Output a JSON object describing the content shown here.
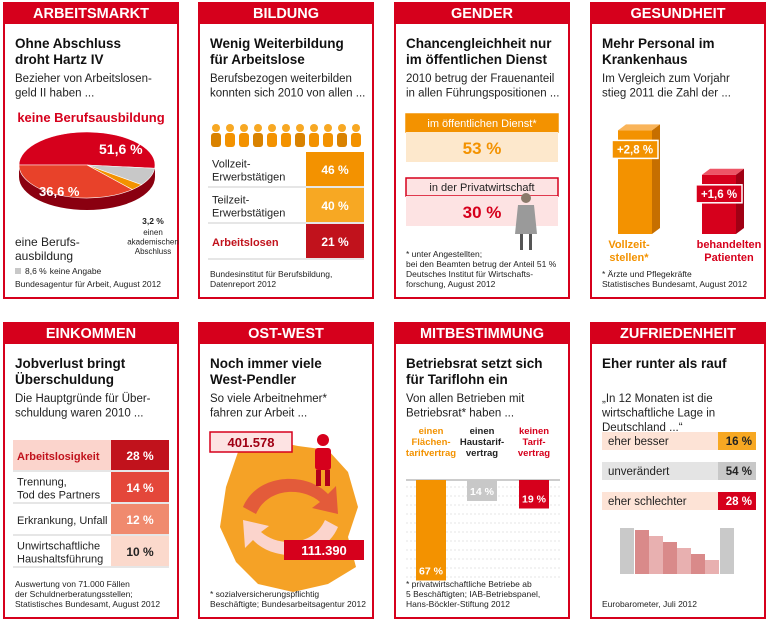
{
  "panels": [
    {
      "header": "ARBEITSMARKT",
      "title": "Ohne Abschluss\ndroht Hartz IV",
      "intro": "Bezieher von Arbeitslosen-\ngeld II haben ...",
      "pie": {
        "labels": [
          "keine Berufsausbildung",
          "eine Berufs-\nausbildung",
          "einen\nakademischen\nAbschluss",
          "keine Angabe"
        ],
        "values": [
          51.6,
          36.6,
          3.2,
          8.6
        ],
        "value_labels": [
          "51,6 %",
          "36,6 %",
          "3,2 %",
          "8,6 %"
        ],
        "colors": [
          "#d6001c",
          "#e8422a",
          "#f39200",
          "#c8c8c8"
        ]
      },
      "source": "Bundesagentur für Arbeit, August 2012"
    },
    {
      "header": "BILDUNG",
      "title": "Wenig Weiterbildung\nfür Arbeitslose",
      "intro": "Berufsbezogen weiterbilden\nkonnten sich 2010 von allen ...",
      "table": {
        "labels": [
          "Vollzeit-\nErwerbstätigen",
          "Teilzeit-\nErwerbstätigen",
          "Arbeitslosen"
        ],
        "values": [
          46,
          40,
          21
        ],
        "value_labels": [
          "46 %",
          "40 %",
          "21 %"
        ],
        "colors": [
          "#f39200",
          "#f7a823",
          "#c1121c"
        ],
        "label_colors": [
          "#222222",
          "#222222",
          "#c1121c"
        ]
      },
      "source": "Bundesinstitut für Berufsbildung,\nDatenreport 2012"
    },
    {
      "header": "GENDER",
      "title": "Chancengleichheit nur\nim öffentlichen Dienst",
      "intro": "2010 betrug der Frauenanteil\nin allen Führungspositionen ...",
      "boxes": {
        "labels": [
          "im öffentlichen Dienst*",
          "in der Privatwirtschaft"
        ],
        "values": [
          53,
          30
        ],
        "value_labels": [
          "53 %",
          "30 %"
        ],
        "colors": [
          "#f39200",
          "#d6001c"
        ]
      },
      "source": "* unter Angestellten;\nbei den Beamten betrug der Anteil 51 %\nDeutsches Institut für Wirtschafts-\nforschung, August 2012"
    },
    {
      "header": "GESUNDHEIT",
      "title": "Mehr Personal im\nKrankenhaus",
      "intro": "Im Vergleich zum Vorjahr\nstieg 2011 die Zahl der ...",
      "bars": {
        "labels": [
          "Vollzeit-\nstellen*",
          "behandelten\nPatienten"
        ],
        "values": [
          2.8,
          1.6
        ],
        "value_labels": [
          "+2,8 %",
          "+1,6 %"
        ],
        "colors": [
          "#f39200",
          "#d6001c"
        ]
      },
      "source": "* Ärzte und Pflegekräfte\nStatistisches Bundesamt, August 2012"
    },
    {
      "header": "EINKOMMEN",
      "title": "Jobverlust bringt\nÜberschuldung",
      "intro": "Die Hauptgründe für Über-\nschuldung waren 2010 ...",
      "table": {
        "labels": [
          "Arbeitslosigkeit",
          "Trennung,\nTod des Partners",
          "Erkrankung, Unfall",
          "Unwirtschaftliche\nHaushaltsführung"
        ],
        "values": [
          28,
          14,
          12,
          10
        ],
        "value_labels": [
          "28 %",
          "14 %",
          "12 %",
          "10 %"
        ],
        "colors": [
          "#c1121c",
          "#e4473a",
          "#f08a6e",
          "#fbd9cc"
        ],
        "label_colors": [
          "#c1121c",
          "#222222",
          "#222222",
          "#222222"
        ]
      },
      "source": "Auswertung von 71.000 Fällen\nder Schuldnerberatungsstellen;\nStatistisches Bundesamt, August 2012"
    },
    {
      "header": "OST-WEST",
      "title": "Noch immer viele\nWest-Pendler",
      "intro": "So viele Arbeitnehmer*\nfahren zur Arbeit ...",
      "flows": {
        "values": [
          401578,
          111390
        ],
        "value_labels": [
          "401.578",
          "111.390"
        ]
      },
      "source": "* sozialversicherungspflichtig\nBeschäftigte; Bundesarbeitsagentur 2012"
    },
    {
      "header": "MITBESTIMMUNG",
      "title": "Betriebsrat setzt sich\nfür Tariflohn ein",
      "intro": "Von allen Betrieben mit\nBetriebsrat* haben ...",
      "columns": {
        "labels": [
          "einen\nFlächen-\ntarifvertrag",
          "einen\nHaustarif-\nvertrag",
          "keinen\nTarif-\nvertrag"
        ],
        "values": [
          67,
          14,
          19
        ],
        "value_labels": [
          "67 %",
          "14 %",
          "19 %"
        ],
        "colors": [
          "#f39200",
          "#c8c8c8",
          "#d6001c"
        ],
        "label_colors": [
          "#f39200",
          "#222222",
          "#d6001c"
        ]
      },
      "source": "* privatwirtschaftliche Betriebe ab\n5 Beschäftigten; IAB-Betriebspanel,\nHans-Böckler-Stiftung 2012"
    },
    {
      "header": "ZUFRIEDENHEIT",
      "title": "Eher runter als rauf",
      "intro": "„In 12 Monaten ist die\nwirtschaftliche Lage in\nDeutschland ...“",
      "options": {
        "labels": [
          "eher besser",
          "unverändert",
          "eher schlechter"
        ],
        "values": [
          16,
          54,
          28
        ],
        "value_labels": [
          "16 %",
          "54 %",
          "28 %"
        ],
        "colors": [
          "#f7a823",
          "#c8c8c8",
          "#d6001c"
        ],
        "band_colors": [
          "#fde3d6",
          "#e4e4e4",
          "#fde3d6"
        ]
      },
      "source": "Eurobarometer, Juli 2012"
    }
  ]
}
